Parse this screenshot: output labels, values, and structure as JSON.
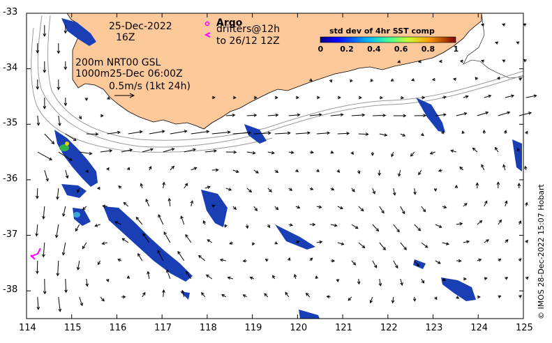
{
  "map": {
    "date_line": "25-Dec-2022",
    "hour_line": "16Z",
    "legend_marker_label": "Argo",
    "drifters_line1": "drifters@12h",
    "drifters_line2": "to 26/12 12Z",
    "depth_line1": "200m  NRT00 GSL",
    "depth_line2": "1000m25-Dec 06:00Z",
    "scale_label": "0.5m/s (1kt 24h)",
    "colorbar_title": "std dev of 4hr SST comp",
    "colorbar_ticks": [
      "0",
      "0.2",
      "0.4",
      "0.6",
      "0.8",
      "1"
    ],
    "colorbar_range": [
      0,
      1
    ],
    "credit": "© IMOS 28-Dec-2022 15:07 Hobart",
    "lon_ticks": [
      "114",
      "115",
      "116",
      "117",
      "118",
      "119",
      "120",
      "121",
      "122",
      "123",
      "124",
      "125"
    ],
    "lat_ticks": [
      "-33",
      "-34",
      "-35",
      "-36",
      "-37",
      "-38"
    ],
    "lon_range": [
      114,
      125
    ],
    "lat_range": [
      -38.5,
      -33
    ],
    "colors": {
      "land": "#fdc99b",
      "sst_low": "#1a3fb5",
      "sst_mid": "#36b24a",
      "argo": "#ff00ff",
      "isobath": "#9a9a9a",
      "drifter": "#ff00ff"
    }
  }
}
